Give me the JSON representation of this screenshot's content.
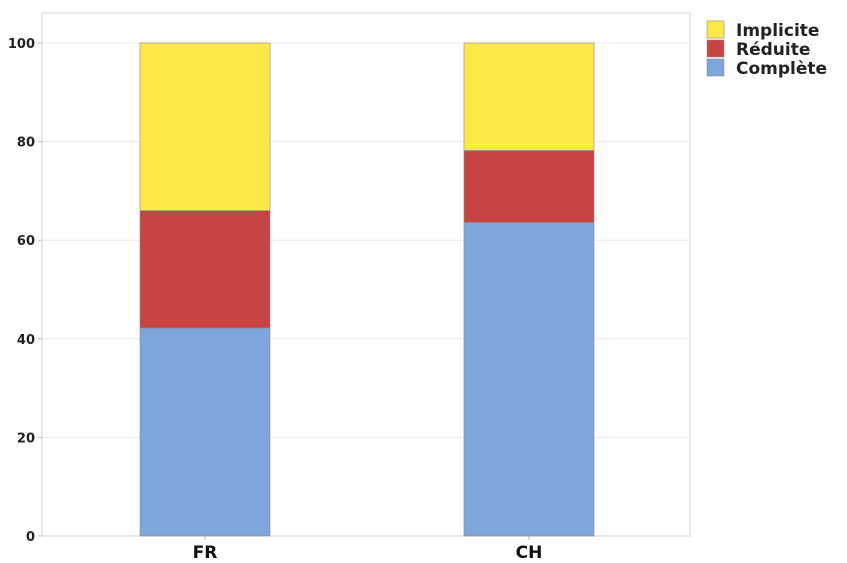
{
  "chart_data": {
    "type": "bar",
    "stacked": true,
    "categories": [
      "FR",
      "CH"
    ],
    "series": [
      {
        "name": "Complète",
        "values": [
          42.2,
          63.6
        ],
        "color": "#7ea6da"
      },
      {
        "name": "Réduite",
        "values": [
          23.8,
          14.6
        ],
        "color": "#c84444"
      },
      {
        "name": "Implicite",
        "values": [
          34.0,
          21.8
        ],
        "color": "#fde84a"
      }
    ],
    "legend_order": [
      "Implicite",
      "Réduite",
      "Complète"
    ],
    "title": "",
    "xlabel": "",
    "ylabel": "",
    "ylim": [
      0,
      100
    ],
    "yticks": [
      0,
      20,
      40,
      60,
      80,
      100
    ],
    "grid": true,
    "legend_position": "top-right outside"
  }
}
